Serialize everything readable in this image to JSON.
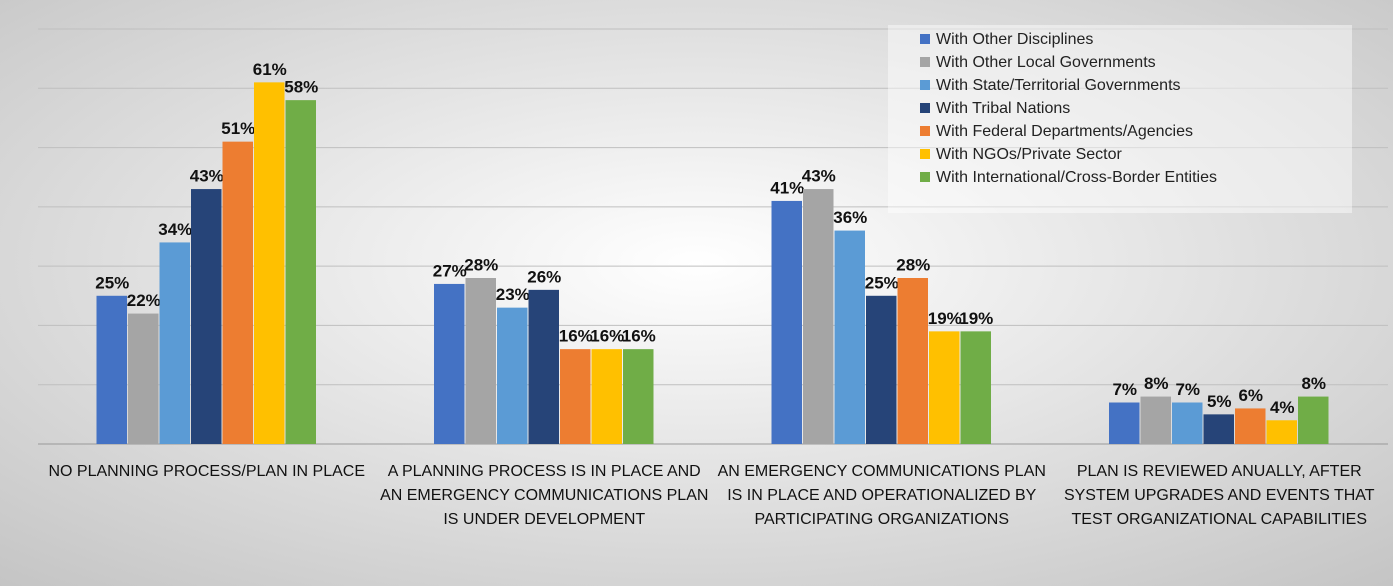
{
  "chart_data": {
    "type": "bar",
    "categories": [
      "NO PLANNING PROCESS/PLAN IN PLACE",
      "A PLANNING PROCESS IS IN PLACE AND AN EMERGENCY COMMUNICATIONS PLAN IS UNDER DEVELOPMENT",
      "AN EMERGENCY COMMUNICATIONS PLAN IS IN PLACE AND OPERATIONALIZED BY PARTICIPATING ORGANIZATIONS",
      "PLAN IS REVIEWED ANUALLY, AFTER SYSTEM UPGRADES AND EVENTS THAT TEST ORGANIZATIONAL CAPABILITIES"
    ],
    "series": [
      {
        "name": "With Other Disciplines",
        "color": "#4472c4",
        "values": [
          25,
          27,
          41,
          7
        ],
        "value_labels": [
          "25%",
          "27%",
          "41%",
          "7%"
        ]
      },
      {
        "name": "With Other Local Governments",
        "color": "#a5a5a5",
        "values": [
          22,
          28,
          43,
          8
        ],
        "value_labels": [
          "22%",
          "28%",
          "43%",
          "8%"
        ]
      },
      {
        "name": "With State/Territorial Governments",
        "color": "#5b9bd5",
        "values": [
          34,
          23,
          36,
          7
        ],
        "value_labels": [
          "34%",
          "23%",
          "36%",
          "7%"
        ]
      },
      {
        "name": "With Tribal Nations",
        "color": "#264478",
        "values": [
          43,
          26,
          25,
          5
        ],
        "value_labels": [
          "43%",
          "26%",
          "25%",
          "5%"
        ]
      },
      {
        "name": "With Federal Departments/Agencies",
        "color": "#ed7d31",
        "values": [
          51,
          16,
          28,
          6
        ],
        "value_labels": [
          "51%",
          "16%",
          "28%",
          "6%"
        ]
      },
      {
        "name": "With NGOs/Private Sector",
        "color": "#ffc000",
        "values": [
          61,
          16,
          19,
          4
        ],
        "value_labels": [
          "61%",
          "16%",
          "19%",
          "4%"
        ]
      },
      {
        "name": "With International/Cross-Border Entities",
        "color": "#70ad47",
        "values": [
          58,
          16,
          19,
          8
        ],
        "value_labels": [
          "58%",
          "16%",
          "19%",
          "8%"
        ]
      }
    ],
    "ylim": [
      0,
      70
    ],
    "yticks": [
      0,
      10,
      20,
      30,
      40,
      50,
      60,
      70
    ],
    "grid": true,
    "legend": "top-right"
  }
}
